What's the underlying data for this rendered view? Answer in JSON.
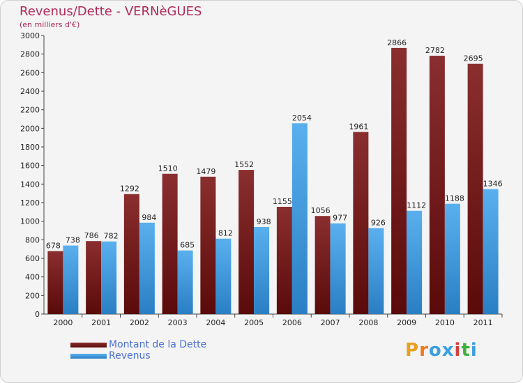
{
  "chart_data": {
    "type": "bar",
    "title": "Revenus/Dette - VERNèGUES",
    "subtitle": "(en milliers d'€)",
    "categories": [
      "2000",
      "2001",
      "2002",
      "2003",
      "2004",
      "2005",
      "2006",
      "2007",
      "2008",
      "2009",
      "2010",
      "2011"
    ],
    "series": [
      {
        "name": "Montant de la Dette",
        "color": "#7a1c1c",
        "values": [
          678,
          786,
          1292,
          1510,
          1479,
          1552,
          1155,
          1056,
          1961,
          2866,
          2782,
          2695
        ]
      },
      {
        "name": "Revenus",
        "color": "#4aa3e6",
        "values": [
          738,
          782,
          984,
          685,
          812,
          938,
          2054,
          977,
          926,
          1112,
          1188,
          1346
        ]
      }
    ],
    "y_ticks": [
      0,
      200,
      400,
      600,
      800,
      1000,
      1200,
      1400,
      1600,
      1800,
      2000,
      2200,
      2400,
      2600,
      2800,
      3000
    ],
    "ylim": [
      0,
      3000
    ],
    "grid": false,
    "legend_position": "bottom-left"
  },
  "branding": {
    "logo_text": "Proxiti",
    "logo_colors": [
      "#e8a020",
      "#f07820",
      "#3aa0e0",
      "#3aa0e0",
      "#d04040",
      "#40b040",
      "#3aa0e0"
    ]
  }
}
